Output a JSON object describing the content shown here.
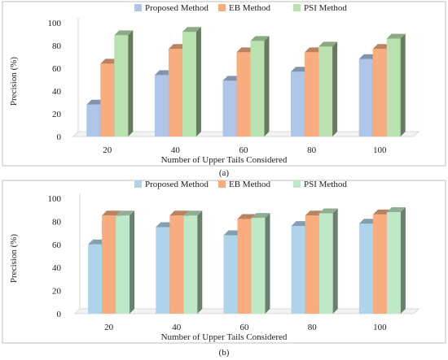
{
  "chart_data": [
    {
      "type": "bar",
      "panel_label": "(a)",
      "title": "",
      "xlabel": "Number of Upper Tails Considered",
      "ylabel": "Precision (%)",
      "ylim": [
        0,
        100
      ],
      "yticks": [
        "0",
        "20",
        "40",
        "60",
        "80",
        "100"
      ],
      "categories": [
        "20",
        "40",
        "60",
        "80",
        "100"
      ],
      "grid": false,
      "legend_position": "top",
      "series": [
        {
          "name": "Proposed Method",
          "color": "#aec4e8",
          "values": [
            28,
            54,
            49,
            57,
            68
          ]
        },
        {
          "name": "EB Method",
          "color": "#f9ad7f",
          "values": [
            64,
            77,
            74,
            74,
            77
          ]
        },
        {
          "name": "PSI Method",
          "color": "#b9e2b0",
          "values": [
            89,
            92,
            84,
            79,
            86
          ]
        }
      ]
    },
    {
      "type": "bar",
      "panel_label": "(b)",
      "title": "",
      "xlabel": "Number of Upper Tails Considered",
      "ylabel": "Precision (%)",
      "ylim": [
        0,
        100
      ],
      "yticks": [
        "0",
        "20",
        "40",
        "60",
        "80",
        "100"
      ],
      "categories": [
        "20",
        "40",
        "60",
        "80",
        "100"
      ],
      "grid": false,
      "legend_position": "top",
      "series": [
        {
          "name": "Proposed Method",
          "color": "#add4ea",
          "values": [
            60,
            75,
            68,
            76,
            78
          ]
        },
        {
          "name": "EB Method",
          "color": "#f9ad7f",
          "values": [
            85,
            85,
            82,
            85,
            86
          ]
        },
        {
          "name": "PSI Method",
          "color": "#bfe9c6",
          "values": [
            85,
            85,
            83,
            87,
            88
          ]
        }
      ]
    }
  ]
}
